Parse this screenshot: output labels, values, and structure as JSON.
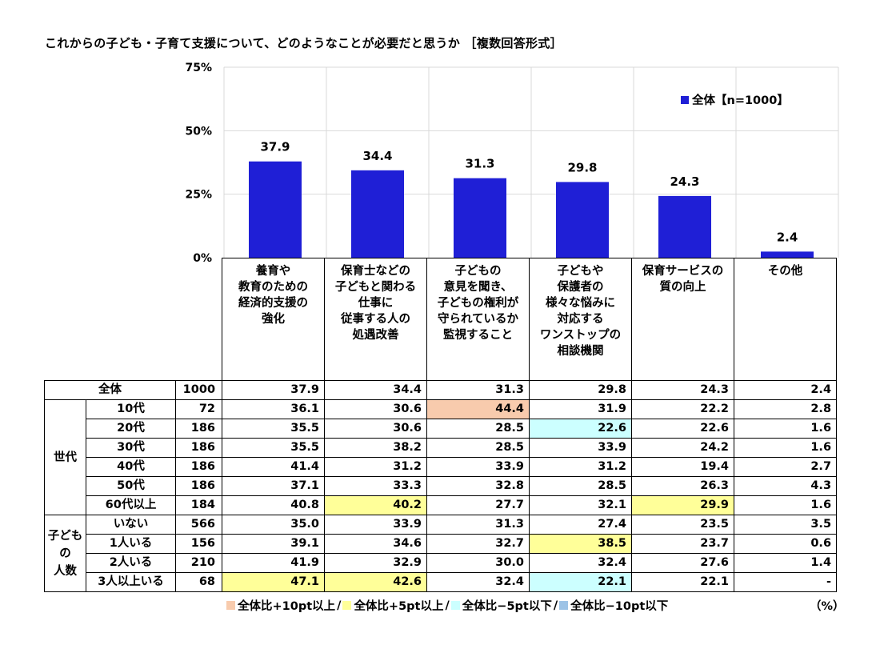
{
  "title": "これからの子ども・子育て支援について、どのようなことが必要だと思うか ［複数回答形式］",
  "chart_data": {
    "type": "bar",
    "y_ticks": [
      "75%",
      "50%",
      "25%",
      "0%"
    ],
    "ylim": [
      0,
      75
    ],
    "grid": true,
    "legend_position": "top-right",
    "series": [
      {
        "name": "全体【n=1000】",
        "color": "#1f1fd6",
        "values": [
          37.9,
          34.4,
          31.3,
          29.8,
          24.3,
          2.4
        ],
        "value_labels": [
          "37.9",
          "34.4",
          "31.3",
          "29.8",
          "24.3",
          "2.4"
        ]
      }
    ],
    "categories": [
      "養育や\n教育のための\n経済的支援の\n強化",
      "保育士などの\n子どもと関わる\n仕事に\n従事する人の\n処遇改善",
      "子どもの\n意見を聞き、\n子どもの権利が\n守られているか\n監視すること",
      "子どもや\n保護者の\n様々な悩みに\n対応する\nワンストップの\n相談機関",
      "保育サービスの\n質の向上",
      "その他"
    ]
  },
  "table": {
    "total_row": {
      "label": "全体",
      "n": "1000",
      "values": [
        "37.9",
        "34.4",
        "31.3",
        "29.8",
        "24.3",
        "2.4"
      ]
    },
    "groups": [
      {
        "label": "世代",
        "rows": [
          {
            "label": "10代",
            "n": "72",
            "values": [
              "36.1",
              "30.6",
              "44.4",
              "31.9",
              "22.2",
              "2.8"
            ],
            "hl": [
              "",
              "",
              "orange",
              "",
              "",
              ""
            ]
          },
          {
            "label": "20代",
            "n": "186",
            "values": [
              "35.5",
              "30.6",
              "28.5",
              "22.6",
              "22.6",
              "1.6"
            ],
            "hl": [
              "",
              "",
              "",
              "cyan",
              "",
              ""
            ]
          },
          {
            "label": "30代",
            "n": "186",
            "values": [
              "35.5",
              "38.2",
              "28.5",
              "33.9",
              "24.2",
              "1.6"
            ],
            "hl": [
              "",
              "",
              "",
              "",
              "",
              ""
            ]
          },
          {
            "label": "40代",
            "n": "186",
            "values": [
              "41.4",
              "31.2",
              "33.9",
              "31.2",
              "19.4",
              "2.7"
            ],
            "hl": [
              "",
              "",
              "",
              "",
              "",
              ""
            ]
          },
          {
            "label": "50代",
            "n": "186",
            "values": [
              "37.1",
              "33.3",
              "32.8",
              "28.5",
              "26.3",
              "4.3"
            ],
            "hl": [
              "",
              "",
              "",
              "",
              "",
              ""
            ]
          },
          {
            "label": "60代以上",
            "n": "184",
            "values": [
              "40.8",
              "40.2",
              "27.7",
              "32.1",
              "29.9",
              "1.6"
            ],
            "hl": [
              "",
              "yellow",
              "",
              "",
              "yellow",
              ""
            ]
          }
        ]
      },
      {
        "label": "子ども\nの\n人数",
        "rows": [
          {
            "label": "いない",
            "n": "566",
            "values": [
              "35.0",
              "33.9",
              "31.3",
              "27.4",
              "23.5",
              "3.5"
            ],
            "hl": [
              "",
              "",
              "",
              "",
              "",
              ""
            ]
          },
          {
            "label": "1人いる",
            "n": "156",
            "values": [
              "39.1",
              "34.6",
              "32.7",
              "38.5",
              "23.7",
              "0.6"
            ],
            "hl": [
              "",
              "",
              "",
              "yellow",
              "",
              ""
            ]
          },
          {
            "label": "2人いる",
            "n": "210",
            "values": [
              "41.9",
              "32.9",
              "30.0",
              "32.4",
              "27.6",
              "1.4"
            ],
            "hl": [
              "",
              "",
              "",
              "",
              "",
              ""
            ]
          },
          {
            "label": "3人以上いる",
            "n": "68",
            "values": [
              "47.1",
              "42.6",
              "32.4",
              "22.1",
              "22.1",
              "-"
            ],
            "hl": [
              "yellow",
              "yellow",
              "",
              "cyan",
              "",
              ""
            ]
          }
        ]
      }
    ]
  },
  "bottom_legend": {
    "items": [
      {
        "label": "全体比+10pt以上",
        "color": "#f8cbad"
      },
      {
        "label": "全体比+5pt以上",
        "color": "#ffff99"
      },
      {
        "label": "全体比−5pt以下",
        "color": "#ccffff"
      },
      {
        "label": "全体比−10pt以下",
        "color": "#9dc3e6"
      }
    ],
    "unit": "（%）"
  }
}
